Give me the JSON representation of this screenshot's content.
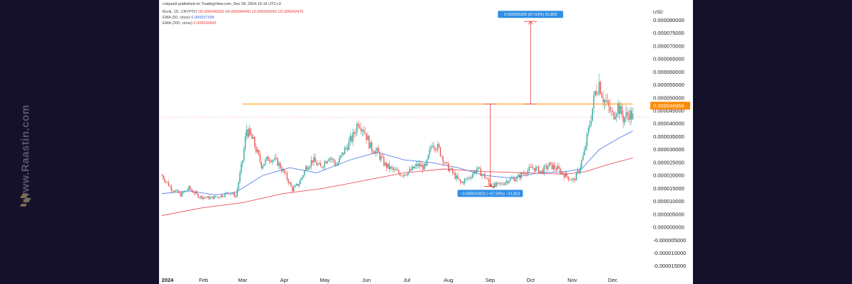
{
  "watermark": {
    "text": "www.Raastin.com"
  },
  "header": {
    "published": "crispus9 published on TradingView.com, Dec 09, 2024 15:16 UTC+3",
    "symbol": "Bonk, 1D, CRYPTO",
    "o": "O0.000045693",
    "h": "H0.000046459",
    "l": "L0.000042056",
    "c": "C0.000042475",
    "ema50_label": "EMA (50, close)",
    "ema50_value": "0.000037208",
    "ema200_label": "EMA (200, close)",
    "ema200_value": "0.000026843"
  },
  "colors": {
    "up": "#26a69a",
    "down": "#ef5350",
    "ema50": "#5b7fe8",
    "ema200": "#ef4f5f",
    "resistance": "#ff9800",
    "measure_arrow": "#e53935",
    "label_bg": "#2f8ee5",
    "price_badge": "#ff8a00"
  },
  "chart_data": {
    "type": "candlestick",
    "currency": "USD",
    "y_ticks": [
      "0.000080000",
      "0.000075000",
      "0.000070000",
      "0.000065000",
      "0.000060000",
      "0.000055000",
      "0.000050000",
      "0.000045000",
      "0.000040000",
      "0.000035000",
      "0.000030000",
      "0.000025000",
      "0.000020000",
      "0.000015000",
      "0.000010000",
      "0.000005000",
      "0.000000000",
      "-0.000005000",
      "-0.000010000",
      "-0.000015000"
    ],
    "ylim": [
      -1.7e-05,
      8.23e-05
    ],
    "x_ticks": [
      "2024",
      "Feb",
      "Mar",
      "Apr",
      "May",
      "Jun",
      "Jul",
      "Aug",
      "Sep",
      "Oct",
      "Nov",
      "Dec"
    ],
    "x_tick_day": [
      0,
      31,
      60,
      91,
      121,
      152,
      182,
      213,
      244,
      274,
      305,
      335
    ],
    "current_price_label": "0.000046956",
    "current_price": 4.6956e-05,
    "resistance_level": 4.76e-05,
    "resistance_span_days": [
      60,
      350
    ],
    "measure_up": {
      "label": "0.000031893 (67.63%) 31,893",
      "day": 274,
      "from": 4.76e-05,
      "to": 7.95e-05
    },
    "measure_down": {
      "label": "−0.000031823 (−67.59%) −31,823",
      "day": 244,
      "from": 4.76e-05,
      "to": 1.58e-05
    },
    "series_close": [
      {
        "day": 0,
        "c": 2e-05
      },
      {
        "day": 7,
        "c": 1.5e-05
      },
      {
        "day": 14,
        "c": 1.25e-05
      },
      {
        "day": 20,
        "c": 1.5e-05
      },
      {
        "day": 28,
        "c": 1.18e-05
      },
      {
        "day": 36,
        "c": 1.13e-05
      },
      {
        "day": 43,
        "c": 1.2e-05
      },
      {
        "day": 50,
        "c": 1.35e-05
      },
      {
        "day": 55,
        "c": 1.2e-05
      },
      {
        "day": 60,
        "c": 2.6e-05
      },
      {
        "day": 63,
        "c": 3.8e-05
      },
      {
        "day": 68,
        "c": 3.3e-05
      },
      {
        "day": 74,
        "c": 2.4e-05
      },
      {
        "day": 80,
        "c": 2.7e-05
      },
      {
        "day": 86,
        "c": 2.5e-05
      },
      {
        "day": 92,
        "c": 2e-05
      },
      {
        "day": 97,
        "c": 1.45e-05
      },
      {
        "day": 102,
        "c": 1.7e-05
      },
      {
        "day": 107,
        "c": 2.3e-05
      },
      {
        "day": 112,
        "c": 2.6e-05
      },
      {
        "day": 118,
        "c": 2.3e-05
      },
      {
        "day": 124,
        "c": 2.75e-05
      },
      {
        "day": 130,
        "c": 2.4e-05
      },
      {
        "day": 136,
        "c": 3e-05
      },
      {
        "day": 142,
        "c": 3.5e-05
      },
      {
        "day": 146,
        "c": 4.1e-05
      },
      {
        "day": 150,
        "c": 3.8e-05
      },
      {
        "day": 155,
        "c": 3.1e-05
      },
      {
        "day": 160,
        "c": 2.9e-05
      },
      {
        "day": 166,
        "c": 2.4e-05
      },
      {
        "day": 172,
        "c": 2.2e-05
      },
      {
        "day": 178,
        "c": 2.05e-05
      },
      {
        "day": 184,
        "c": 2.15e-05
      },
      {
        "day": 190,
        "c": 2.4e-05
      },
      {
        "day": 196,
        "c": 2.3e-05
      },
      {
        "day": 201,
        "c": 3.3e-05
      },
      {
        "day": 206,
        "c": 3e-05
      },
      {
        "day": 211,
        "c": 2.4e-05
      },
      {
        "day": 216,
        "c": 2.1e-05
      },
      {
        "day": 222,
        "c": 1.7e-05
      },
      {
        "day": 228,
        "c": 1.9e-05
      },
      {
        "day": 234,
        "c": 2.25e-05
      },
      {
        "day": 240,
        "c": 1.95e-05
      },
      {
        "day": 245,
        "c": 1.6e-05
      },
      {
        "day": 252,
        "c": 1.65e-05
      },
      {
        "day": 258,
        "c": 1.85e-05
      },
      {
        "day": 264,
        "c": 1.9e-05
      },
      {
        "day": 270,
        "c": 2.15e-05
      },
      {
        "day": 276,
        "c": 2.3e-05
      },
      {
        "day": 282,
        "c": 2.15e-05
      },
      {
        "day": 288,
        "c": 2.4e-05
      },
      {
        "day": 294,
        "c": 2.25e-05
      },
      {
        "day": 300,
        "c": 2e-05
      },
      {
        "day": 306,
        "c": 1.8e-05
      },
      {
        "day": 310,
        "c": 2.2e-05
      },
      {
        "day": 314,
        "c": 2.9e-05
      },
      {
        "day": 318,
        "c": 4e-05
      },
      {
        "day": 322,
        "c": 5.2e-05
      },
      {
        "day": 325,
        "c": 5.6e-05
      },
      {
        "day": 328,
        "c": 5e-05
      },
      {
        "day": 331,
        "c": 4.7e-05
      },
      {
        "day": 335,
        "c": 4.3e-05
      },
      {
        "day": 339,
        "c": 4.7e-05
      },
      {
        "day": 343,
        "c": 4.2e-05
      },
      {
        "day": 347,
        "c": 4.4e-05
      },
      {
        "day": 350,
        "c": 4.25e-05
      }
    ],
    "ema50_points": [
      [
        0,
        1.3e-05
      ],
      [
        20,
        1.4e-05
      ],
      [
        40,
        1.25e-05
      ],
      [
        55,
        1.35e-05
      ],
      [
        75,
        2e-05
      ],
      [
        95,
        2.3e-05
      ],
      [
        115,
        2.1e-05
      ],
      [
        140,
        2.6e-05
      ],
      [
        160,
        2.9e-05
      ],
      [
        180,
        2.6e-05
      ],
      [
        200,
        2.5e-05
      ],
      [
        220,
        2.3e-05
      ],
      [
        240,
        2e-05
      ],
      [
        260,
        1.9e-05
      ],
      [
        280,
        2.1e-05
      ],
      [
        300,
        2.15e-05
      ],
      [
        312,
        2.25e-05
      ],
      [
        325,
        3e-05
      ],
      [
        340,
        3.45e-05
      ],
      [
        350,
        3.72e-05
      ]
    ],
    "ema200_points": [
      [
        0,
        4.5e-06
      ],
      [
        30,
        7.5e-06
      ],
      [
        60,
        9.5e-06
      ],
      [
        90,
        1.3e-05
      ],
      [
        120,
        1.5e-05
      ],
      [
        150,
        1.8e-05
      ],
      [
        180,
        2.1e-05
      ],
      [
        210,
        2.25e-05
      ],
      [
        240,
        2.15e-05
      ],
      [
        270,
        2.1e-05
      ],
      [
        300,
        2.05e-05
      ],
      [
        315,
        2.15e-05
      ],
      [
        330,
        2.4e-05
      ],
      [
        350,
        2.68e-05
      ]
    ]
  }
}
